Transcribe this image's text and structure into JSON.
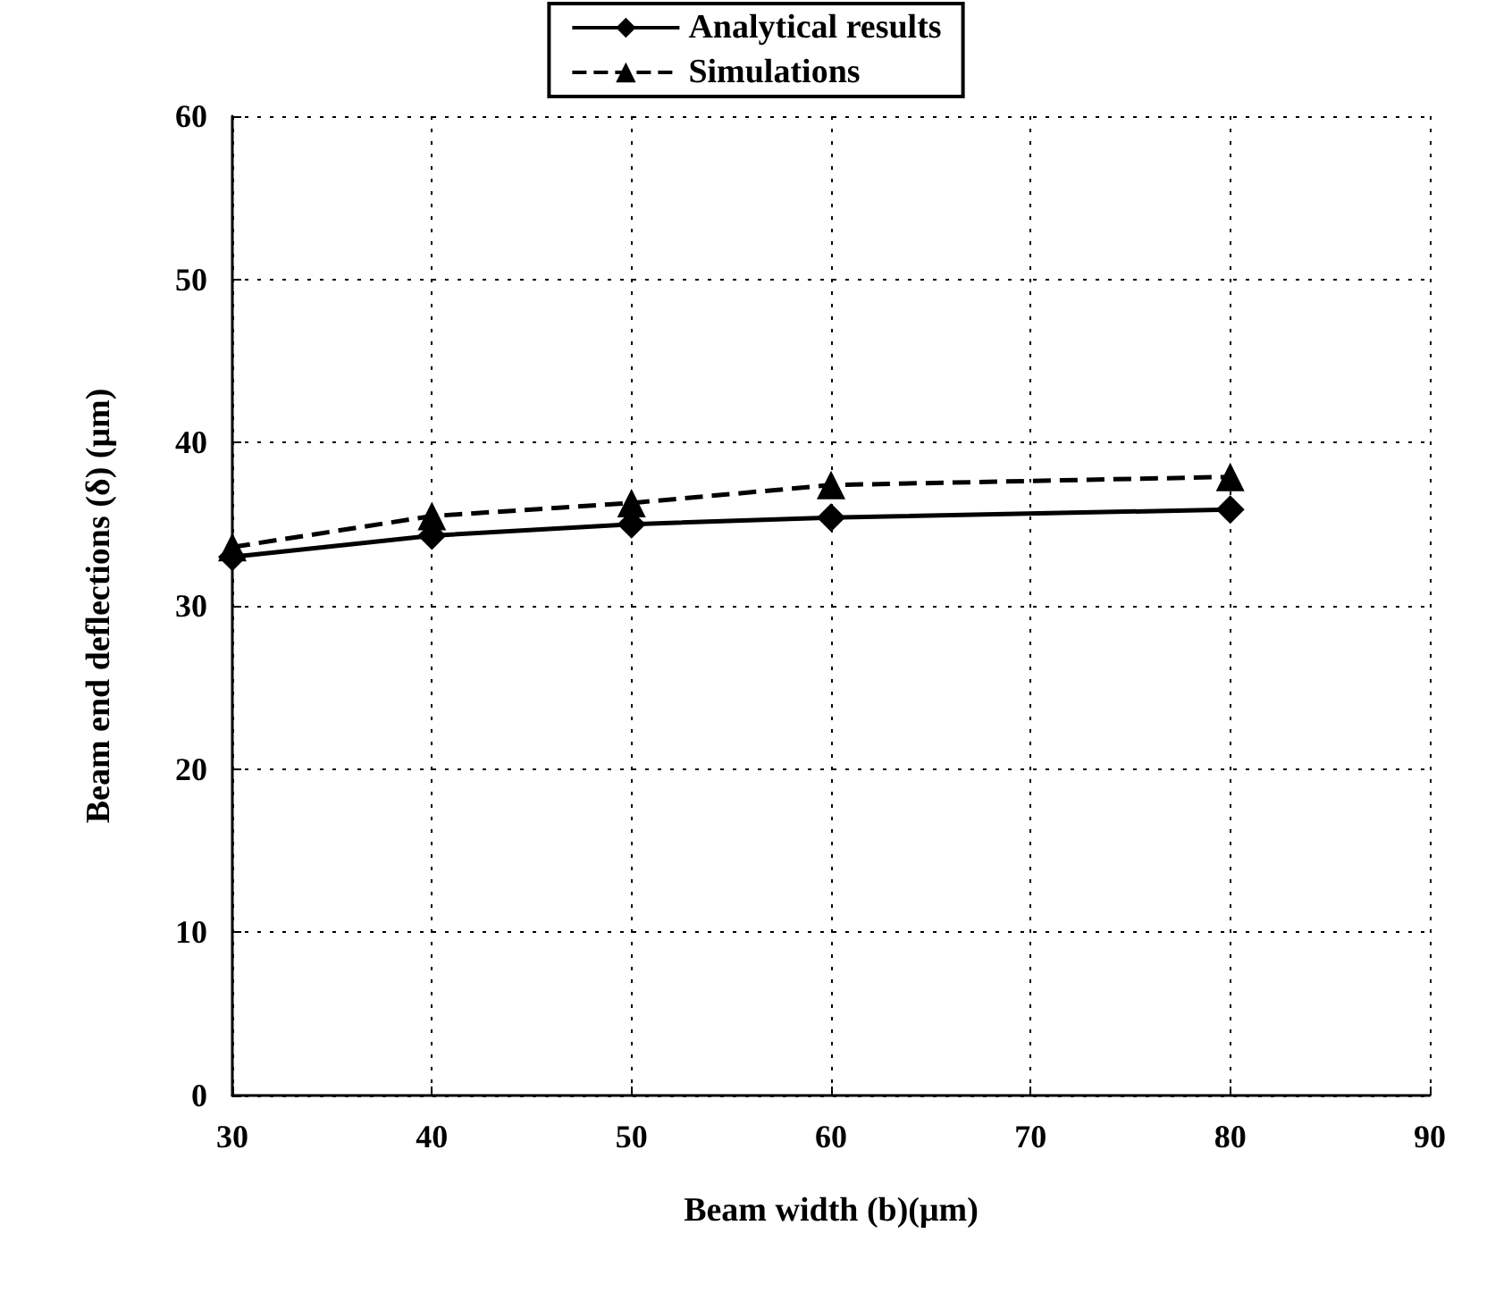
{
  "chart_data": {
    "type": "line",
    "xlabel": "Beam width (b)(μm)",
    "ylabel": "Beam end deflections (δ) (μm)",
    "xlim": [
      30,
      90
    ],
    "xticks": [
      30,
      40,
      50,
      60,
      70,
      80,
      90
    ],
    "ylim": [
      0,
      60
    ],
    "yticks": [
      0,
      10,
      20,
      30,
      40,
      50,
      60
    ],
    "grid": true,
    "legend": "top",
    "series": [
      {
        "name": "Analytical results",
        "color": "#000000",
        "x": [
          30,
          40,
          50,
          60,
          80
        ],
        "values": [
          33.0,
          34.3,
          35.0,
          35.4,
          35.9
        ],
        "marker": "diamond",
        "line_style": "solid"
      },
      {
        "name": "Simulations",
        "color": "#000000",
        "x": [
          30,
          40,
          50,
          60,
          80
        ],
        "values": [
          33.6,
          35.5,
          36.3,
          37.4,
          37.9
        ],
        "marker": "triangle",
        "line_style": "dashed"
      }
    ]
  }
}
